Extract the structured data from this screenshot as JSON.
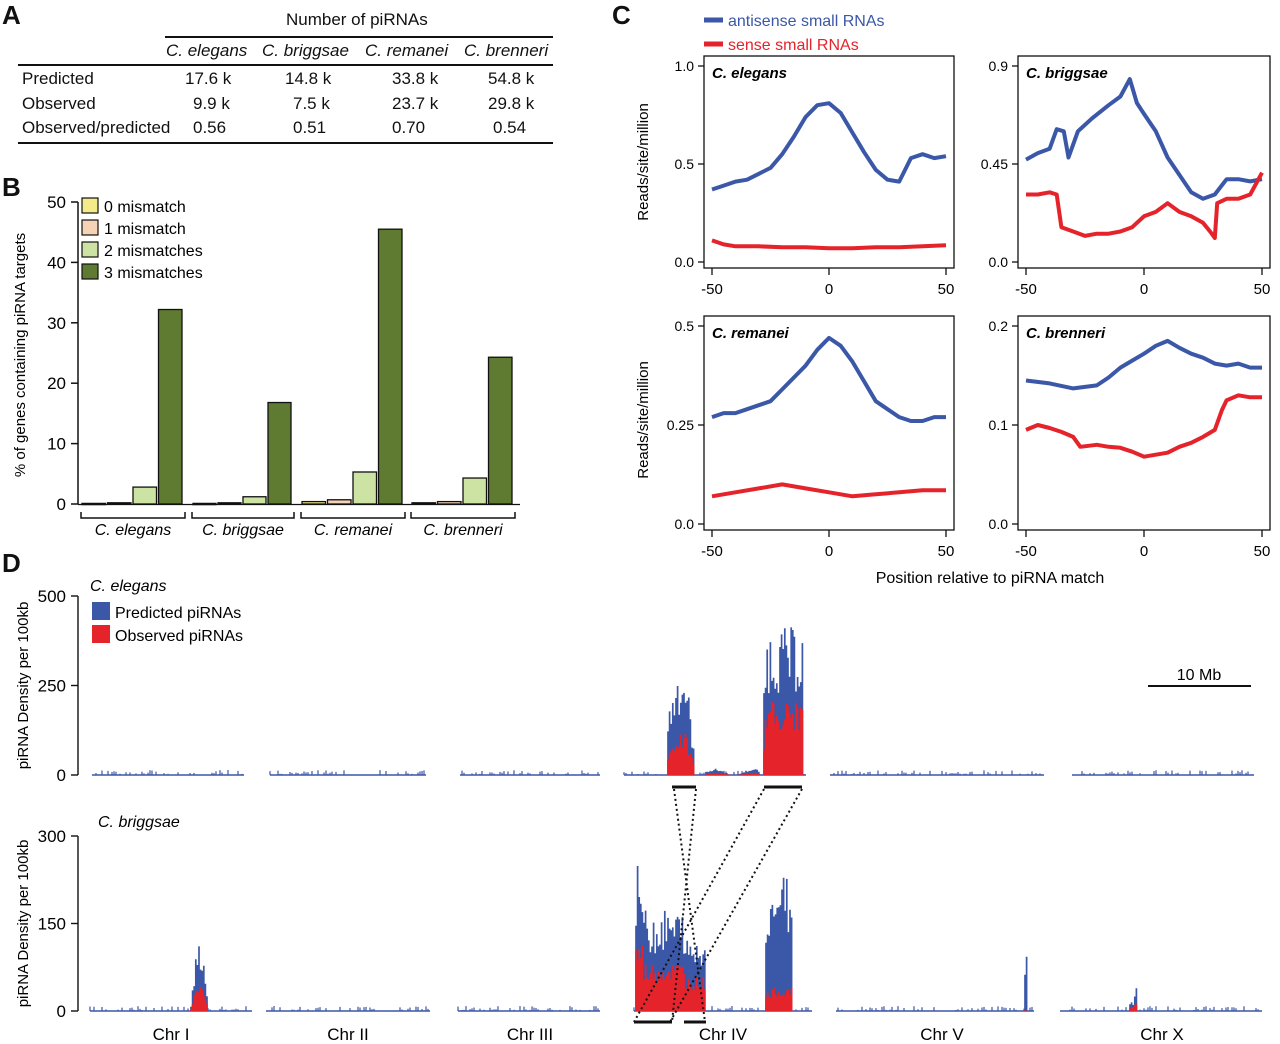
{
  "panels": {
    "a": "A",
    "b": "B",
    "c": "C",
    "d": "D"
  },
  "table": {
    "title": "Number of piRNAs",
    "species": [
      "C. elegans",
      "C. briggsae",
      "C. remanei",
      "C. brenneri"
    ],
    "rows": [
      {
        "label": "Predicted",
        "values": [
          "17.6 k",
          "14.8 k",
          "33.8 k",
          "54.8 k"
        ]
      },
      {
        "label": "Observed",
        "values": [
          "9.9 k",
          "7.5 k",
          "23.7 k",
          "29.8 k"
        ]
      },
      {
        "label": "Observed/predicted",
        "values": [
          "0.56",
          "0.51",
          "0.70",
          "0.54"
        ]
      }
    ]
  },
  "chart_data": [
    {
      "type": "bar",
      "ylabel": "% of genes containing piRNA targets",
      "ylim": [
        0,
        50
      ],
      "yticks": [
        "0",
        "10",
        "20",
        "30",
        "40",
        "50"
      ],
      "categories": [
        "C. elegans",
        "C. briggsae",
        "C. remanei",
        "C. brenneri"
      ],
      "series": [
        {
          "name": "0 mismatch",
          "color": "#f3ea8a",
          "values": [
            0.1,
            0.1,
            0.4,
            0.2
          ]
        },
        {
          "name": "1 mismatch",
          "color": "#f6d3b5",
          "values": [
            0.2,
            0.2,
            0.7,
            0.4
          ]
        },
        {
          "name": "2 mismatches",
          "color": "#cde3a4",
          "values": [
            2.8,
            1.2,
            5.3,
            4.3
          ]
        },
        {
          "name": "3 mismatches",
          "color": "#5f7a31",
          "values": [
            32.2,
            16.8,
            45.5,
            24.3
          ]
        }
      ],
      "legend": "top-left"
    },
    {
      "type": "line",
      "xlabel": "Position relative to piRNA match",
      "ylabel": "Reads/site/million",
      "xticks": [
        "-50",
        "0",
        "50"
      ],
      "series_legend": [
        {
          "name": "antisense small RNAs",
          "color": "#3b57a8"
        },
        {
          "name": "sense  small RNAs",
          "color": "#e5232b"
        }
      ],
      "subplots": [
        {
          "title": "C. elegans",
          "ylim": [
            0,
            1.0
          ],
          "yticks": [
            "0.0",
            "0.5",
            "1.0"
          ],
          "antisense": [
            [
              -50,
              0.37
            ],
            [
              -45,
              0.39
            ],
            [
              -40,
              0.41
            ],
            [
              -35,
              0.42
            ],
            [
              -30,
              0.45
            ],
            [
              -25,
              0.48
            ],
            [
              -20,
              0.55
            ],
            [
              -15,
              0.64
            ],
            [
              -10,
              0.74
            ],
            [
              -5,
              0.8
            ],
            [
              0,
              0.81
            ],
            [
              5,
              0.76
            ],
            [
              10,
              0.66
            ],
            [
              15,
              0.56
            ],
            [
              20,
              0.47
            ],
            [
              25,
              0.42
            ],
            [
              30,
              0.41
            ],
            [
              35,
              0.53
            ],
            [
              40,
              0.55
            ],
            [
              45,
              0.53
            ],
            [
              50,
              0.54
            ]
          ],
          "sense": [
            [
              -50,
              0.11
            ],
            [
              -45,
              0.09
            ],
            [
              -40,
              0.08
            ],
            [
              -30,
              0.08
            ],
            [
              -20,
              0.075
            ],
            [
              -10,
              0.075
            ],
            [
              0,
              0.07
            ],
            [
              10,
              0.07
            ],
            [
              20,
              0.075
            ],
            [
              30,
              0.075
            ],
            [
              40,
              0.08
            ],
            [
              50,
              0.085
            ]
          ]
        },
        {
          "title": "C. briggsae",
          "ylim": [
            0,
            0.9
          ],
          "yticks": [
            "0.0",
            "0.45",
            "0.9"
          ],
          "antisense": [
            [
              -50,
              0.47
            ],
            [
              -45,
              0.5
            ],
            [
              -40,
              0.52
            ],
            [
              -37,
              0.61
            ],
            [
              -34,
              0.6
            ],
            [
              -32,
              0.48
            ],
            [
              -28,
              0.6
            ],
            [
              -22,
              0.66
            ],
            [
              -15,
              0.72
            ],
            [
              -10,
              0.76
            ],
            [
              -8,
              0.8
            ],
            [
              -6,
              0.84
            ],
            [
              -3,
              0.73
            ],
            [
              0,
              0.68
            ],
            [
              5,
              0.6
            ],
            [
              10,
              0.48
            ],
            [
              15,
              0.4
            ],
            [
              20,
              0.32
            ],
            [
              25,
              0.29
            ],
            [
              30,
              0.31
            ],
            [
              35,
              0.38
            ],
            [
              40,
              0.38
            ],
            [
              45,
              0.37
            ],
            [
              50,
              0.38
            ]
          ],
          "sense": [
            [
              -50,
              0.31
            ],
            [
              -45,
              0.31
            ],
            [
              -40,
              0.32
            ],
            [
              -37,
              0.31
            ],
            [
              -35,
              0.16
            ],
            [
              -30,
              0.14
            ],
            [
              -25,
              0.12
            ],
            [
              -20,
              0.13
            ],
            [
              -15,
              0.13
            ],
            [
              -10,
              0.14
            ],
            [
              -5,
              0.16
            ],
            [
              0,
              0.21
            ],
            [
              5,
              0.23
            ],
            [
              10,
              0.27
            ],
            [
              15,
              0.23
            ],
            [
              20,
              0.21
            ],
            [
              25,
              0.18
            ],
            [
              28,
              0.14
            ],
            [
              30,
              0.11
            ],
            [
              31,
              0.27
            ],
            [
              35,
              0.29
            ],
            [
              40,
              0.29
            ],
            [
              45,
              0.31
            ],
            [
              50,
              0.41
            ]
          ]
        },
        {
          "title": "C. remanei",
          "ylim": [
            0,
            0.5
          ],
          "yticks": [
            "0.0",
            "0.25",
            "0.5"
          ],
          "antisense": [
            [
              -50,
              0.27
            ],
            [
              -45,
              0.28
            ],
            [
              -40,
              0.28
            ],
            [
              -35,
              0.29
            ],
            [
              -30,
              0.3
            ],
            [
              -25,
              0.31
            ],
            [
              -20,
              0.34
            ],
            [
              -15,
              0.37
            ],
            [
              -10,
              0.4
            ],
            [
              -5,
              0.44
            ],
            [
              0,
              0.47
            ],
            [
              5,
              0.45
            ],
            [
              10,
              0.41
            ],
            [
              15,
              0.36
            ],
            [
              20,
              0.31
            ],
            [
              25,
              0.29
            ],
            [
              30,
              0.27
            ],
            [
              35,
              0.26
            ],
            [
              40,
              0.26
            ],
            [
              45,
              0.27
            ],
            [
              50,
              0.27
            ]
          ],
          "sense": [
            [
              -50,
              0.07
            ],
            [
              -40,
              0.08
            ],
            [
              -30,
              0.09
            ],
            [
              -20,
              0.1
            ],
            [
              -10,
              0.09
            ],
            [
              0,
              0.08
            ],
            [
              10,
              0.07
            ],
            [
              20,
              0.075
            ],
            [
              30,
              0.08
            ],
            [
              40,
              0.085
            ],
            [
              50,
              0.085
            ]
          ]
        },
        {
          "title": "C. brenneri",
          "ylim": [
            0,
            0.2
          ],
          "yticks": [
            "0.0",
            "0.1",
            "0.2"
          ],
          "antisense": [
            [
              -50,
              0.145
            ],
            [
              -40,
              0.142
            ],
            [
              -30,
              0.137
            ],
            [
              -20,
              0.14
            ],
            [
              -15,
              0.148
            ],
            [
              -10,
              0.158
            ],
            [
              -5,
              0.165
            ],
            [
              0,
              0.172
            ],
            [
              5,
              0.18
            ],
            [
              10,
              0.185
            ],
            [
              15,
              0.178
            ],
            [
              20,
              0.172
            ],
            [
              25,
              0.168
            ],
            [
              30,
              0.162
            ],
            [
              35,
              0.16
            ],
            [
              40,
              0.162
            ],
            [
              45,
              0.158
            ],
            [
              50,
              0.158
            ]
          ],
          "sense": [
            [
              -50,
              0.095
            ],
            [
              -45,
              0.1
            ],
            [
              -40,
              0.097
            ],
            [
              -35,
              0.093
            ],
            [
              -30,
              0.088
            ],
            [
              -27,
              0.078
            ],
            [
              -20,
              0.08
            ],
            [
              -15,
              0.078
            ],
            [
              -10,
              0.077
            ],
            [
              -5,
              0.073
            ],
            [
              0,
              0.068
            ],
            [
              5,
              0.07
            ],
            [
              10,
              0.072
            ],
            [
              15,
              0.078
            ],
            [
              20,
              0.082
            ],
            [
              25,
              0.088
            ],
            [
              30,
              0.095
            ],
            [
              33,
              0.115
            ],
            [
              35,
              0.125
            ],
            [
              40,
              0.13
            ],
            [
              45,
              0.128
            ],
            [
              50,
              0.128
            ]
          ]
        }
      ]
    },
    {
      "type": "area",
      "title": "C. elegans",
      "ylabel": "piRNA Density per 100kb",
      "ylim": [
        0,
        500
      ],
      "yticks": [
        "0",
        "250",
        "500"
      ],
      "legend": [
        {
          "name": "Predicted piRNAs",
          "color": "#3b57a8"
        },
        {
          "name": "Observed piRNAs",
          "color": "#e5232b"
        }
      ],
      "scale_bar": "10 Mb",
      "chromosomes": [
        "Chr I",
        "Chr II",
        "Chr III",
        "Chr IV",
        "Chr V",
        "Chr X"
      ],
      "peaks": [
        {
          "chromosome": "Chr IV",
          "region": "left cluster",
          "predicted_max": 290,
          "observed_max": 110
        },
        {
          "chromosome": "Chr IV",
          "region": "right cluster",
          "predicted_max": 460,
          "observed_max": 220
        }
      ]
    },
    {
      "type": "area",
      "title": "C. briggsae",
      "ylabel": "piRNA Density per 100kb",
      "ylim": [
        0,
        300
      ],
      "yticks": [
        "0",
        "150",
        "300"
      ],
      "chromosomes": [
        "Chr I",
        "Chr II",
        "Chr III",
        "Chr IV",
        "Chr V",
        "Chr X"
      ],
      "peaks": [
        {
          "chromosome": "Chr I",
          "predicted_max": 128,
          "observed_max": 50
        },
        {
          "chromosome": "Chr IV",
          "region": "left cluster",
          "predicted_max": 250,
          "observed_max": 120
        },
        {
          "chromosome": "Chr IV",
          "region": "right cluster",
          "predicted_max": 265,
          "observed_max": 45
        },
        {
          "chromosome": "Chr V",
          "predicted_max": 100,
          "observed_max": 0
        },
        {
          "chromosome": "Chr X",
          "predicted_max": 45,
          "observed_max": 15
        }
      ]
    }
  ]
}
